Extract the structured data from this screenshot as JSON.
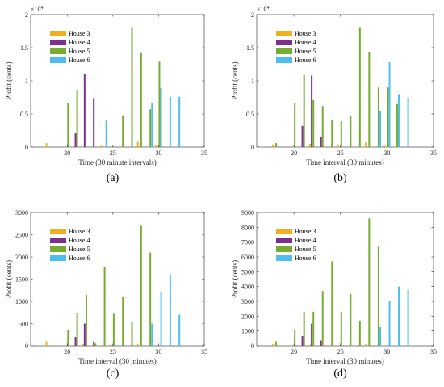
{
  "colors": {
    "House 3": "#EDB120",
    "House 4": "#7E2F8E",
    "House 5": "#77AC30",
    "House 6": "#4DBEEE",
    "axis": "#262626",
    "background": "#ffffff"
  },
  "chart_data": [
    {
      "type": "bar",
      "panel_label": "(a)",
      "xlabel": "Time (30 minute intervals)",
      "ylabel": "Profit (cents)",
      "exponent_label": "×10",
      "exponent_power": "4",
      "xlim": [
        16,
        35
      ],
      "ylim": [
        0,
        20000
      ],
      "xticks": [
        "20",
        "25",
        "30",
        "35"
      ],
      "yticks": [
        "0",
        "0.5",
        "1",
        "1.5",
        "2"
      ],
      "ytick_values": [
        0,
        5000,
        10000,
        15000,
        20000
      ],
      "legend": "top-left",
      "series": [
        {
          "name": "House 3",
          "points": [
            [
              18,
              600
            ],
            [
              24,
              200
            ],
            [
              28,
              800
            ],
            [
              30,
              300
            ]
          ]
        },
        {
          "name": "House 4",
          "points": [
            [
              21,
              2100
            ],
            [
              22,
              11000
            ],
            [
              23,
              7400
            ]
          ]
        },
        {
          "name": "House 5",
          "points": [
            [
              20,
              6600
            ],
            [
              21,
              8600
            ],
            [
              26,
              4800
            ],
            [
              27,
              18000
            ],
            [
              28,
              14300
            ],
            [
              29,
              5700
            ],
            [
              30,
              12900
            ]
          ]
        },
        {
          "name": "House 6",
          "points": [
            [
              24,
              4100
            ],
            [
              29,
              6700
            ],
            [
              30,
              8900
            ],
            [
              31,
              7600
            ],
            [
              32,
              7600
            ]
          ]
        }
      ]
    },
    {
      "type": "bar",
      "panel_label": "(b)",
      "xlabel": "Time interval (30 minutes)",
      "ylabel": "Profit (cents)",
      "exponent_label": "×10",
      "exponent_power": "4",
      "xlim": [
        16,
        35
      ],
      "ylim": [
        0,
        20000
      ],
      "xticks": [
        "20",
        "25",
        "30",
        "35"
      ],
      "yticks": [
        "0",
        "0.5",
        "1",
        "1.5",
        "2"
      ],
      "ytick_values": [
        0,
        5000,
        10000,
        15000,
        20000
      ],
      "legend": "top-left",
      "series": [
        {
          "name": "House 3",
          "points": [
            [
              18,
              400
            ],
            [
              22,
              500
            ],
            [
              25,
              300
            ],
            [
              28,
              700
            ],
            [
              30,
              200
            ]
          ]
        },
        {
          "name": "House 4",
          "points": [
            [
              21,
              3200
            ],
            [
              22,
              10800
            ],
            [
              23,
              1600
            ]
          ]
        },
        {
          "name": "House 5",
          "points": [
            [
              18,
              600
            ],
            [
              20,
              6600
            ],
            [
              21,
              10900
            ],
            [
              22,
              7100
            ],
            [
              23,
              6200
            ],
            [
              24,
              4100
            ],
            [
              25,
              3900
            ],
            [
              26,
              4700
            ],
            [
              27,
              18000
            ],
            [
              28,
              14400
            ],
            [
              29,
              9000
            ],
            [
              30,
              9000
            ],
            [
              31,
              6500
            ]
          ]
        },
        {
          "name": "House 6",
          "points": [
            [
              29,
              5400
            ],
            [
              30,
              12800
            ],
            [
              31,
              8000
            ],
            [
              32,
              7500
            ]
          ]
        }
      ]
    },
    {
      "type": "bar",
      "panel_label": "(c)",
      "xlabel": "Time interval (30 minutes)",
      "ylabel": "Profit (cents)",
      "xlim": [
        16,
        35
      ],
      "ylim": [
        0,
        3000
      ],
      "xticks": [
        "20",
        "25",
        "30",
        "35"
      ],
      "yticks": [
        "0",
        "500",
        "1000",
        "1500",
        "2000",
        "2500",
        "3000"
      ],
      "ytick_values": [
        0,
        500,
        1000,
        1500,
        2000,
        2500,
        3000
      ],
      "legend": "top-left",
      "series": [
        {
          "name": "House 3",
          "points": [
            [
              18,
              100
            ],
            [
              22,
              40
            ],
            [
              25,
              30
            ],
            [
              28,
              40
            ]
          ]
        },
        {
          "name": "House 4",
          "points": [
            [
              21,
              200
            ],
            [
              22,
              500
            ],
            [
              23,
              100
            ]
          ]
        },
        {
          "name": "House 5",
          "points": [
            [
              20,
              350
            ],
            [
              21,
              730
            ],
            [
              22,
              1150
            ],
            [
              23,
              50
            ],
            [
              24,
              1780
            ],
            [
              25,
              720
            ],
            [
              26,
              1100
            ],
            [
              27,
              550
            ],
            [
              28,
              2700
            ],
            [
              29,
              2100
            ]
          ]
        },
        {
          "name": "House 6",
          "points": [
            [
              29,
              500
            ],
            [
              30,
              1200
            ],
            [
              31,
              1600
            ],
            [
              32,
              700
            ]
          ]
        }
      ]
    },
    {
      "type": "bar",
      "panel_label": "(d)",
      "xlabel": "Time interval (30 minutes)",
      "ylabel": "Profit (cents)",
      "xlim": [
        16,
        35
      ],
      "ylim": [
        0,
        9000
      ],
      "xticks": [
        "20",
        "25",
        "30",
        "35"
      ],
      "yticks": [
        "0",
        "1000",
        "2000",
        "3000",
        "4000",
        "5000",
        "6000",
        "7000",
        "8000",
        "9000"
      ],
      "ytick_values": [
        0,
        1000,
        2000,
        3000,
        4000,
        5000,
        6000,
        7000,
        8000,
        9000
      ],
      "legend": "top-left",
      "series": [
        {
          "name": "House 3",
          "points": [
            [
              18,
              100
            ],
            [
              22,
              80
            ],
            [
              28,
              100
            ]
          ]
        },
        {
          "name": "House 4",
          "points": [
            [
              21,
              650
            ],
            [
              22,
              1500
            ],
            [
              23,
              350
            ]
          ]
        },
        {
          "name": "House 5",
          "points": [
            [
              18,
              300
            ],
            [
              20,
              1100
            ],
            [
              21,
              2300
            ],
            [
              22,
              2300
            ],
            [
              23,
              3700
            ],
            [
              24,
              5700
            ],
            [
              25,
              2300
            ],
            [
              26,
              3500
            ],
            [
              27,
              1700
            ],
            [
              28,
              8600
            ],
            [
              29,
              6700
            ]
          ]
        },
        {
          "name": "House 6",
          "points": [
            [
              29,
              1250
            ],
            [
              30,
              3000
            ],
            [
              31,
              4000
            ],
            [
              32,
              3800
            ]
          ]
        }
      ]
    }
  ]
}
